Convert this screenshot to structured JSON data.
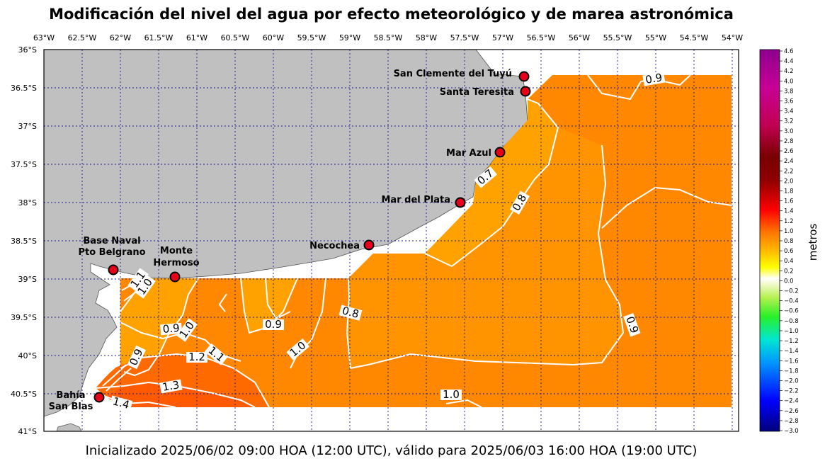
{
  "title": "Modificación del nivel del agua por efecto meteorológico y de marea astronómica",
  "footer": "Inicializado 2025/06/02 09:00 HOA (12:00 UTC), válido para 2025/06/03 16:00 HOA (19:00 UTC)",
  "lon_labels": [
    "63°W",
    "62.5°W",
    "62°W",
    "61.5°W",
    "61°W",
    "60.5°W",
    "60°W",
    "59.5°W",
    "59°W",
    "58.5°W",
    "58°W",
    "57.5°W",
    "57°W",
    "56.5°W",
    "56°W",
    "55.5°W",
    "55°W",
    "54.5°W",
    "54°W"
  ],
  "lat_labels": [
    "36°S",
    "36.5°S",
    "37°S",
    "37.5°S",
    "38°S",
    "38.5°S",
    "39°S",
    "39.5°S",
    "40°S",
    "40.5°S",
    "41°S"
  ],
  "stations": [
    {
      "name": "San Clemente del Tuyú"
    },
    {
      "name": "Santa Teresita"
    },
    {
      "name": "Mar Azul"
    },
    {
      "name": "Mar del Plata"
    },
    {
      "name": "Necochea"
    },
    {
      "name": "Base Naval",
      "name2": "Pto Belgrano"
    },
    {
      "name": "Monte",
      "name2": "Hermoso"
    },
    {
      "name": "Bahía",
      "name2": "San Blas"
    }
  ],
  "contour_labels": [
    "0.9",
    "0.7",
    "0.8",
    "0.9",
    "1.1",
    "1.0",
    "0.9",
    "1.0",
    "0.9",
    "0.8",
    "1.0",
    "0.9",
    "1.2",
    "1.1",
    "1.3",
    "1.4",
    "1.0"
  ],
  "colorbar": {
    "unit": "metros",
    "ticks": [
      "4.6",
      "4.4",
      "4.2",
      "4.0",
      "3.8",
      "3.6",
      "3.4",
      "3.2",
      "3.0",
      "2.8",
      "2.6",
      "2.4",
      "2.2",
      "2.0",
      "1.8",
      "1.6",
      "1.4",
      "1.2",
      "1.0",
      "0.8",
      "0.6",
      "0.4",
      "0.2",
      "0.0",
      "−0.2",
      "−0.4",
      "−0.6",
      "−0.8",
      "−1.0",
      "−1.2",
      "−1.4",
      "−1.6",
      "−1.8",
      "−2.0",
      "−2.2",
      "−2.4",
      "−2.6",
      "−2.8",
      "−3.0"
    ]
  },
  "colors": {
    "land": "#c0c0c0",
    "gridline": "#1a1a99",
    "marker": "#e8001a",
    "field_mid": "#ff8800",
    "field_low": "#ffa200",
    "field_high": "#ff5a00"
  }
}
